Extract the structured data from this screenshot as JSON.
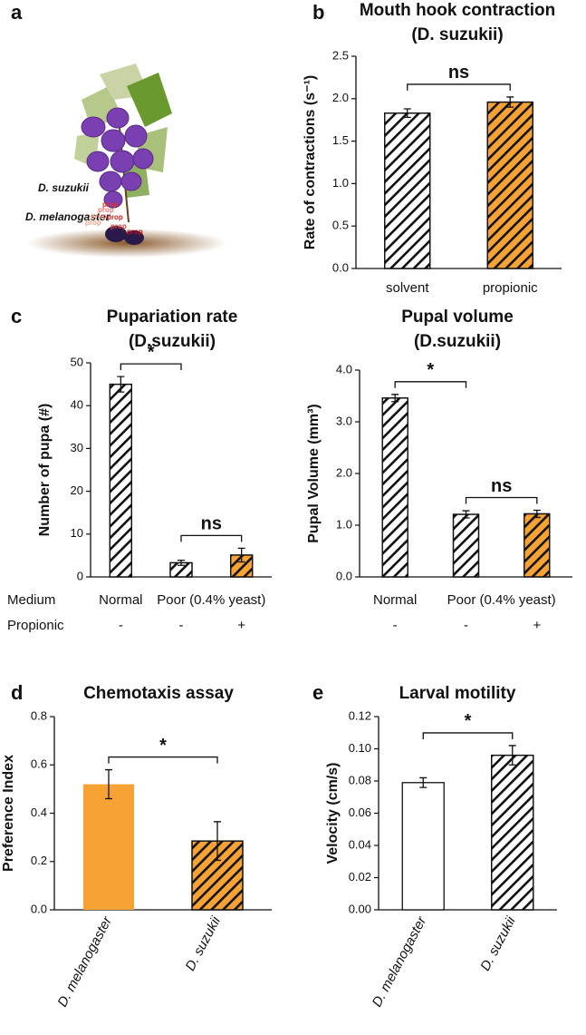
{
  "panel_labels": [
    "a",
    "b",
    "c",
    "d",
    "e"
  ],
  "illustration": {
    "species_labels": [
      "D. suzukii",
      "D. melanogaster"
    ],
    "compound_label": "prop"
  },
  "chart_data": [
    {
      "type": "bar",
      "title": "Mouth hook contraction",
      "subtitle": "(D. suzukii)",
      "ylabel": "Rate of contractions (s⁻¹)",
      "categories": [
        "solvent",
        "propionic"
      ],
      "values": [
        1.83,
        1.96
      ],
      "errors": [
        0.05,
        0.06
      ],
      "colors": [
        "#ffffff",
        "#f7a234"
      ],
      "hatch": [
        true,
        true
      ],
      "ylim": [
        0,
        2.5
      ],
      "yticks": [
        {
          "value": 0,
          "label": "0.0"
        },
        {
          "value": 0.5,
          "label": "0.5"
        },
        {
          "value": 1,
          "label": "1.0"
        },
        {
          "value": 1.5,
          "label": "1.5"
        },
        {
          "value": 2,
          "label": "2.0"
        },
        {
          "value": 2.5,
          "label": "2.5"
        }
      ],
      "significance": [
        {
          "label": "ns",
          "between": [
            0,
            1
          ]
        }
      ]
    },
    {
      "type": "bar",
      "title": "Pupariation rate",
      "subtitle": "(D.suzukii)",
      "ylabel": "Number of pupa  (#)",
      "row_labels": [
        "Medium",
        "Propionic"
      ],
      "categories": [
        "Normal",
        "Poor (0.4% yeast)",
        null
      ],
      "signs": [
        "-",
        "-",
        "+"
      ],
      "values": [
        45,
        3.3,
        5.1
      ],
      "errors": [
        1.8,
        0.6,
        1.6
      ],
      "colors": [
        "#ffffff",
        "#ffffff",
        "#f7a234"
      ],
      "hatch": [
        true,
        true,
        true
      ],
      "ylim": [
        0,
        50
      ],
      "yticks": [
        0,
        10,
        20,
        30,
        40,
        50
      ],
      "significance": [
        {
          "label": "*",
          "between": [
            0,
            1
          ]
        },
        {
          "label": "ns",
          "between": [
            1,
            2
          ]
        }
      ]
    },
    {
      "type": "bar",
      "title": "Pupal volume",
      "subtitle": "(D.suzukii)",
      "ylabel": "Pupal Volume (mm³)",
      "categories": [
        "Normal",
        "Poor (0.4% yeast)",
        null
      ],
      "signs": [
        "-",
        "-",
        "+"
      ],
      "values": [
        3.46,
        1.21,
        1.22
      ],
      "errors": [
        0.07,
        0.07,
        0.07
      ],
      "colors": [
        "#ffffff",
        "#ffffff",
        "#f7a234"
      ],
      "hatch": [
        true,
        true,
        true
      ],
      "ylim": [
        0,
        4
      ],
      "yticks": [
        {
          "value": 0,
          "label": "0.0"
        },
        {
          "value": 1,
          "label": "1.0"
        },
        {
          "value": 2,
          "label": "2.0"
        },
        {
          "value": 3,
          "label": "3.0"
        },
        {
          "value": 4,
          "label": "4.0"
        }
      ],
      "significance": [
        {
          "label": "*",
          "between": [
            0,
            1
          ]
        },
        {
          "label": "ns",
          "between": [
            1,
            2
          ]
        }
      ]
    },
    {
      "type": "bar",
      "title": "Chemotaxis assay",
      "ylabel": "Preference Index",
      "categories": [
        "D. melanogaster",
        "D. suzukii"
      ],
      "values": [
        0.52,
        0.285
      ],
      "errors": [
        0.06,
        0.08
      ],
      "colors": [
        "#f7a234",
        "#f7a234"
      ],
      "hatch": [
        false,
        true
      ],
      "ylim": [
        0,
        0.8
      ],
      "yticks": [
        {
          "value": 0,
          "label": "0.0"
        },
        {
          "value": 0.2,
          "label": "0.2"
        },
        {
          "value": 0.4,
          "label": "0.4"
        },
        {
          "value": 0.6,
          "label": "0.6"
        },
        {
          "value": 0.8,
          "label": "0.8"
        }
      ],
      "significance": [
        {
          "label": "*",
          "between": [
            0,
            1
          ]
        }
      ]
    },
    {
      "type": "bar",
      "title": "Larval motility",
      "ylabel": "Velocity (cm/s)",
      "categories": [
        "D. melanogaster",
        "D. suzukii"
      ],
      "values": [
        0.079,
        0.096
      ],
      "errors": [
        0.003,
        0.006
      ],
      "colors": [
        "#ffffff",
        "#ffffff"
      ],
      "hatch": [
        false,
        true
      ],
      "ylim": [
        0,
        0.12
      ],
      "yticks": [
        {
          "value": 0,
          "label": "0.00"
        },
        {
          "value": 0.02,
          "label": "0.02"
        },
        {
          "value": 0.04,
          "label": "0.04"
        },
        {
          "value": 0.06,
          "label": "0.06"
        },
        {
          "value": 0.08,
          "label": "0.08"
        },
        {
          "value": 0.1,
          "label": "0.10"
        },
        {
          "value": 0.12,
          "label": "0.12"
        }
      ],
      "significance": [
        {
          "label": "*",
          "between": [
            0,
            1
          ]
        }
      ]
    }
  ]
}
